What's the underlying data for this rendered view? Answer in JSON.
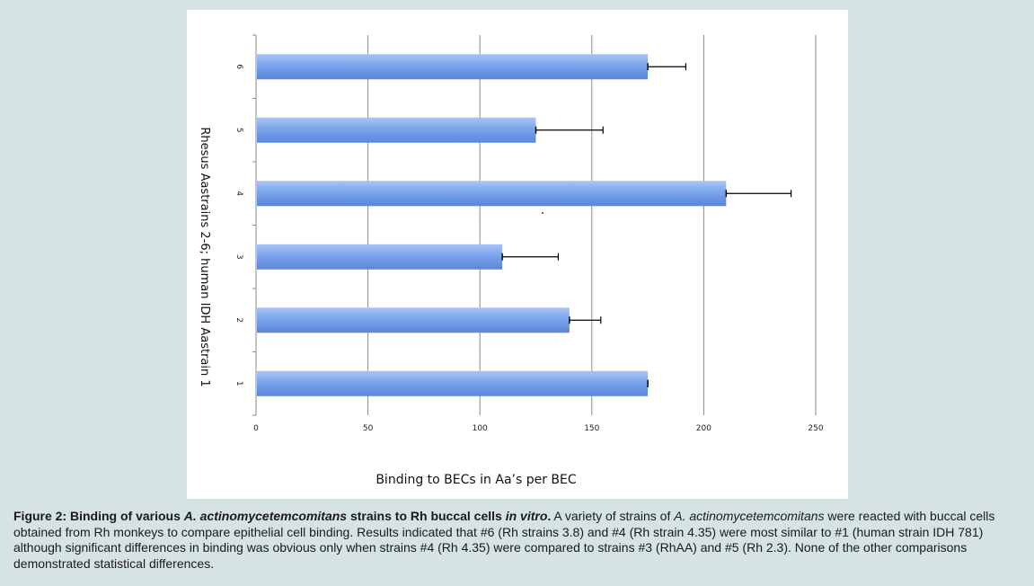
{
  "chart_data": {
    "type": "bar",
    "orientation": "horizontal",
    "categories": [
      "1",
      "2",
      "3",
      "4",
      "5",
      "6"
    ],
    "values": [
      175,
      140,
      110,
      210,
      125,
      175
    ],
    "errors": [
      0,
      14,
      25,
      29,
      30,
      17
    ],
    "xlabel": "Binding to BECs in Aa’s per BEC",
    "ylabel": "Rhesus Aastrains 2-6; human IDH Aastrain 1",
    "xlim": [
      0,
      250
    ],
    "x_ticks": [
      "0",
      "50",
      "100",
      "150",
      "200",
      "250"
    ],
    "grid": "vertical major gridlines",
    "bar_color": "#6f9be8"
  },
  "caption": {
    "lead_pre": "Figure 2: Binding of various ",
    "lead_species": "A. actinomycetemcomitans",
    "lead_mid": " strains to Rh buccal cells ",
    "lead_invitro": "in vitro",
    "lead_end": ".",
    "body_pre": " A variety of strains of ",
    "body_species": "A. actinomycetemcomitans",
    "body_rest": " were reacted with buccal cells obtained from Rh monkeys to compare epithelial cell binding. Results indicated that #6 (Rh strains 3.8) and #4 (Rh strain 4.35) were most similar to #1 (human strain IDH 781) although significant differences in binding was obvious only when strains #4 (Rh 4.35) were compared to strains #3 (RhAA) and #5 (Rh 2.3). None of the other comparisons demonstrated statistical differences."
  }
}
